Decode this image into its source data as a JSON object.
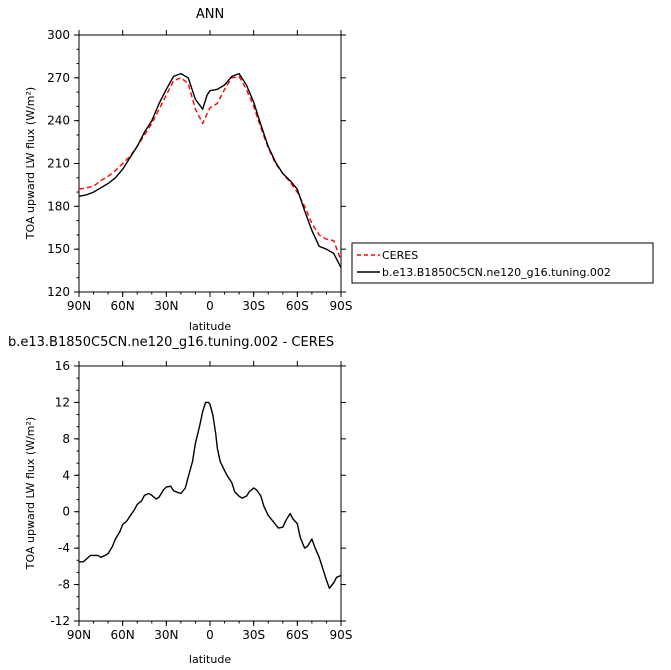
{
  "chart_data": [
    {
      "type": "line",
      "title": "ANN",
      "xlabel": "latitude",
      "ylabel": "TOA upward LW flux (W/m²)",
      "xlim": [
        90,
        -90
      ],
      "ylim": [
        120,
        300
      ],
      "yticks": [
        "120",
        "150",
        "180",
        "210",
        "240",
        "270",
        "300"
      ],
      "xticks": [
        {
          "value": 90,
          "label": "90N"
        },
        {
          "value": 60,
          "label": "60N"
        },
        {
          "value": 30,
          "label": "30N"
        },
        {
          "value": 0,
          "label": "0"
        },
        {
          "value": -30,
          "label": "30S"
        },
        {
          "value": -60,
          "label": "60S"
        },
        {
          "value": -90,
          "label": "90S"
        }
      ],
      "legend_position": "right",
      "series": [
        {
          "name": "CERES",
          "color": "#ff0000",
          "dash": "dashed",
          "x": [
            90,
            85,
            80,
            75,
            70,
            65,
            60,
            55,
            50,
            45,
            40,
            35,
            30,
            25,
            20,
            15,
            10,
            5,
            2,
            0,
            -5,
            -10,
            -15,
            -20,
            -25,
            -30,
            -35,
            -40,
            -45,
            -50,
            -55,
            -60,
            -65,
            -70,
            -75,
            -80,
            -85,
            -90
          ],
          "y": [
            192,
            193,
            194,
            198,
            201,
            205,
            210,
            215,
            222,
            230,
            238,
            248,
            258,
            268,
            270,
            266,
            248,
            238,
            245,
            249,
            252,
            262,
            270,
            271,
            262,
            250,
            235,
            221,
            210,
            203,
            197,
            190,
            180,
            168,
            160,
            157,
            156,
            142
          ]
        },
        {
          "name": "b.e13.B1850C5CN.ne120_g16.tuning.002",
          "color": "#000000",
          "dash": "solid",
          "x": [
            90,
            85,
            80,
            75,
            70,
            65,
            60,
            55,
            50,
            45,
            40,
            35,
            30,
            25,
            20,
            15,
            10,
            5,
            2,
            0,
            -5,
            -10,
            -15,
            -20,
            -25,
            -30,
            -35,
            -40,
            -45,
            -50,
            -55,
            -60,
            -65,
            -70,
            -75,
            -80,
            -85,
            -90
          ],
          "y": [
            187,
            188,
            190,
            193,
            196,
            200,
            206,
            214,
            222,
            232,
            240,
            252,
            262,
            271,
            273,
            270,
            255,
            248,
            258,
            261,
            262,
            265,
            271,
            273,
            265,
            253,
            237,
            222,
            211,
            203,
            198,
            192,
            177,
            163,
            152,
            150,
            147,
            137
          ]
        }
      ]
    },
    {
      "type": "line",
      "title": "b.e13.B1850C5CN.ne120_g16.tuning.002 - CERES",
      "xlabel": "latitude",
      "ylabel": "TOA upward LW flux (W/m²)",
      "xlim": [
        90,
        -90
      ],
      "ylim": [
        -12,
        16
      ],
      "yticks": [
        "-12",
        "-8",
        "-4",
        "0",
        "4",
        "8",
        "12",
        "16"
      ],
      "xticks": [
        {
          "value": 90,
          "label": "90N"
        },
        {
          "value": 60,
          "label": "60N"
        },
        {
          "value": 30,
          "label": "30N"
        },
        {
          "value": 0,
          "label": "0"
        },
        {
          "value": -30,
          "label": "30S"
        },
        {
          "value": -60,
          "label": "60S"
        },
        {
          "value": -90,
          "label": "90S"
        }
      ],
      "series": [
        {
          "color": "#000000",
          "dash": "solid",
          "x": [
            90,
            87,
            85,
            82,
            80,
            77,
            75,
            72,
            70,
            67,
            65,
            62,
            60,
            57,
            55,
            52,
            50,
            47,
            45,
            42,
            40,
            37,
            35,
            32,
            30,
            27,
            25,
            22,
            20,
            17,
            15,
            12,
            10,
            7,
            5,
            3,
            1,
            0,
            -2,
            -4,
            -5,
            -7,
            -10,
            -12,
            -15,
            -17,
            -20,
            -22,
            -25,
            -27,
            -30,
            -32,
            -35,
            -37,
            -40,
            -43,
            -45,
            -47,
            -50,
            -52,
            -55,
            -57,
            -60,
            -62,
            -65,
            -67,
            -70,
            -72,
            -75,
            -77,
            -80,
            -82,
            -85,
            -87,
            -90
          ],
          "y": [
            -5.5,
            -5.5,
            -5.2,
            -4.8,
            -4.8,
            -4.8,
            -5.0,
            -4.8,
            -4.6,
            -3.8,
            -3.0,
            -2.2,
            -1.4,
            -1.0,
            -0.5,
            0.2,
            0.8,
            1.2,
            1.8,
            2.0,
            1.8,
            1.4,
            1.6,
            2.4,
            2.7,
            2.8,
            2.3,
            2.1,
            2.0,
            2.6,
            3.8,
            5.5,
            7.5,
            9.5,
            11.0,
            12.0,
            12.0,
            11.8,
            10.6,
            8.5,
            7.0,
            5.5,
            4.5,
            3.9,
            3.2,
            2.2,
            1.7,
            1.5,
            1.7,
            2.2,
            2.6,
            2.4,
            1.7,
            0.6,
            -0.4,
            -1.0,
            -1.4,
            -1.8,
            -1.7,
            -1.0,
            -0.2,
            -0.8,
            -1.3,
            -2.8,
            -4.0,
            -3.8,
            -3.0,
            -3.9,
            -5.0,
            -6.0,
            -7.5,
            -8.4,
            -7.8,
            -7.2,
            -7.0
          ]
        }
      ]
    }
  ]
}
